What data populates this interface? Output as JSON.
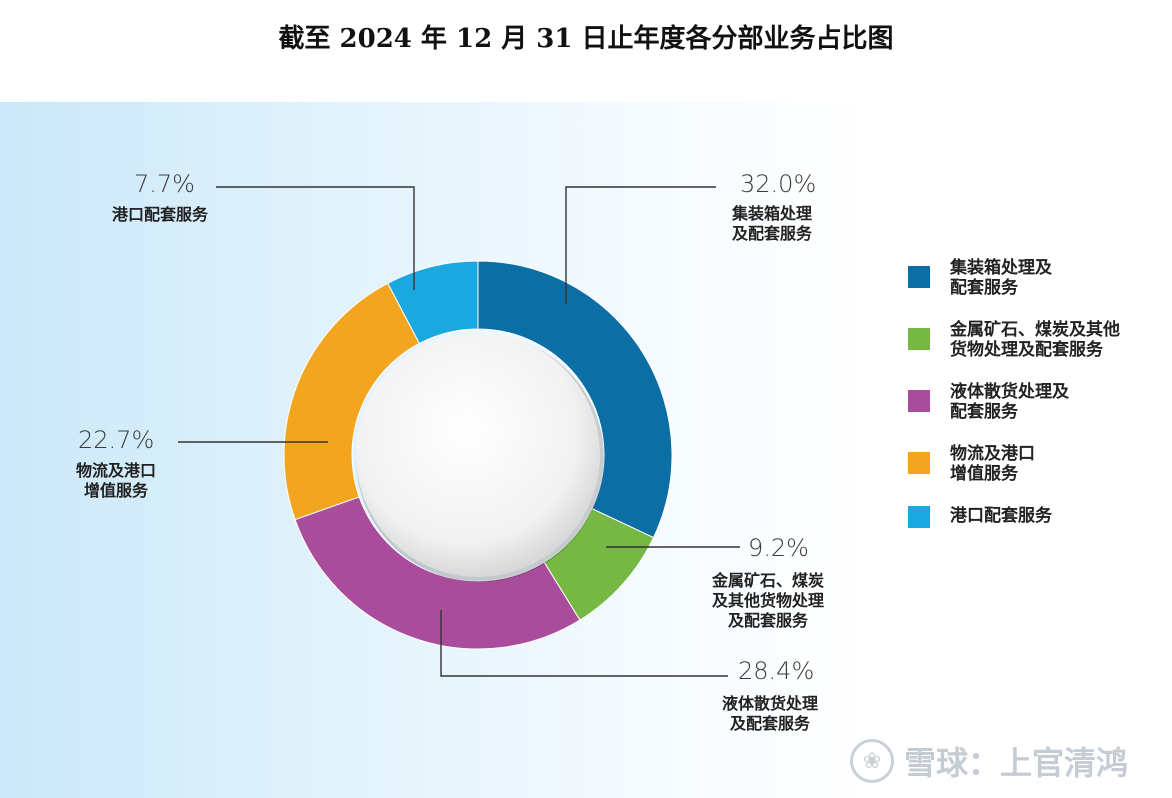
{
  "title": "截至 2024 年 12 月 31 日止年度各分部业务占比图",
  "chart_data": {
    "type": "pie",
    "title": "截至 2024 年 12 月 31 日止年度各分部业务占比图",
    "unit": "%",
    "slices": [
      {
        "key": "container",
        "label": "集装箱处理及配套服务",
        "value": 32.0,
        "value_text": "32.0%",
        "callout": "集装箱处理\n及配套服务",
        "legend": "集装箱处理及\n配套服务",
        "color": "#0b6ea4"
      },
      {
        "key": "metal",
        "label": "金属矿石、煤炭及其他货物处理及配套服务",
        "value": 9.2,
        "value_text": "9.2%",
        "callout": "金属矿石、煤炭\n及其他货物处理\n及配套服务",
        "legend": "金属矿石、煤炭及其他\n货物处理及配套服务",
        "color": "#76b843"
      },
      {
        "key": "liquid",
        "label": "液体散货处理及配套服务",
        "value": 28.4,
        "value_text": "28.4%",
        "callout": "液体散货处理\n及配套服务",
        "legend": "液体散货处理及\n配套服务",
        "color": "#a94c9c"
      },
      {
        "key": "logistics",
        "label": "物流及港口增值服务",
        "value": 22.7,
        "value_text": "22.7%",
        "callout": "物流及港口\n增值服务",
        "legend": "物流及港口\n增值服务",
        "color": "#f4a51f"
      },
      {
        "key": "port",
        "label": "港口配套服务",
        "value": 7.7,
        "value_text": "7.7%",
        "callout": "港口配套服务",
        "legend": "港口配套服务",
        "color": "#1aa8de"
      }
    ]
  },
  "watermark": {
    "icon": "xueqiu-logo-icon",
    "text": "雪球：上官清鸿"
  }
}
